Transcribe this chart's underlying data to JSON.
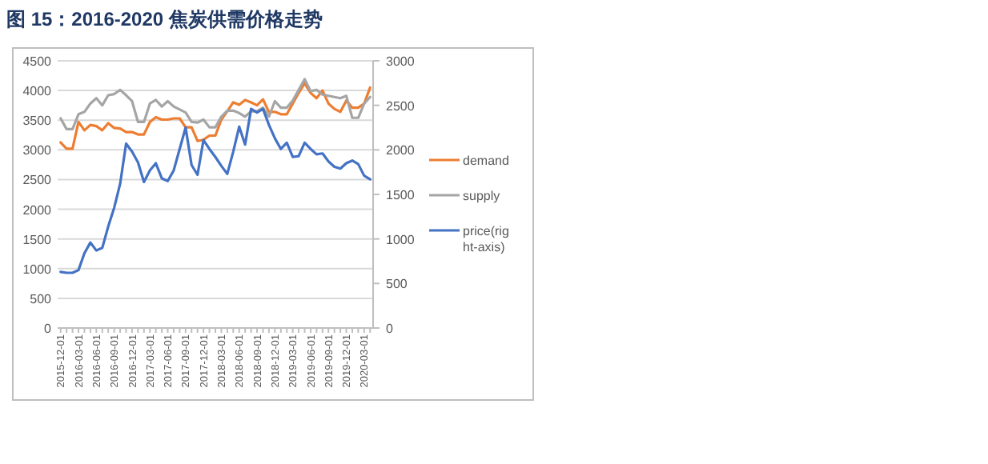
{
  "chart_data": {
    "type": "line",
    "title": "图 15：2016-2020 焦炭供需价格走势",
    "categories": [
      "2015-12-01",
      null,
      null,
      "2016-03-01",
      null,
      null,
      "2016-06-01",
      null,
      null,
      "2016-09-01",
      null,
      null,
      "2016-12-01",
      null,
      null,
      "2017-03-01",
      null,
      null,
      "2017-06-01",
      null,
      null,
      "2017-09-01",
      null,
      null,
      "2017-12-01",
      null,
      null,
      "2018-03-01",
      null,
      null,
      "2018-06-01",
      null,
      null,
      "2018-09-01",
      null,
      null,
      "2018-12-01",
      null,
      null,
      "2019-03-01",
      null,
      null,
      "2019-06-01",
      null,
      null,
      "2019-09-01",
      null,
      null,
      "2019-12-01",
      null,
      null,
      "2020-03-01",
      null
    ],
    "series": [
      {
        "name": "demand",
        "color": "#ed7d31",
        "values": [
          3125,
          3020,
          3020,
          3470,
          3330,
          3420,
          3400,
          3330,
          3450,
          3370,
          3360,
          3300,
          3300,
          3260,
          3260,
          3470,
          3550,
          3510,
          3510,
          3530,
          3530,
          3380,
          3380,
          3150,
          3170,
          3240,
          3240,
          3510,
          3650,
          3800,
          3760,
          3840,
          3800,
          3750,
          3850,
          3640,
          3640,
          3600,
          3600,
          3780,
          3960,
          4120,
          3960,
          3870,
          4000,
          3780,
          3690,
          3640,
          3830,
          3710,
          3710,
          3780,
          4050
        ]
      },
      {
        "name": "supply",
        "color": "#a5a5a5",
        "values": [
          3530,
          3350,
          3350,
          3600,
          3640,
          3780,
          3870,
          3750,
          3920,
          3940,
          4010,
          3920,
          3820,
          3470,
          3470,
          3780,
          3840,
          3730,
          3820,
          3730,
          3680,
          3630,
          3470,
          3460,
          3510,
          3380,
          3380,
          3560,
          3660,
          3660,
          3620,
          3560,
          3650,
          3650,
          3710,
          3560,
          3820,
          3710,
          3710,
          3830,
          4010,
          4190,
          3990,
          4010,
          3930,
          3910,
          3890,
          3870,
          3910,
          3540,
          3540,
          3780,
          3890
        ]
      },
      {
        "name": "price(right-axis)",
        "color": "#4472c4",
        "axis": "y2",
        "values": [
          630,
          620,
          620,
          650,
          840,
          960,
          870,
          900,
          1140,
          1350,
          1620,
          2070,
          1980,
          1860,
          1640,
          1770,
          1850,
          1680,
          1650,
          1770,
          2010,
          2250,
          1830,
          1720,
          2110,
          2010,
          1920,
          1820,
          1730,
          1980,
          2260,
          2060,
          2460,
          2420,
          2460,
          2280,
          2130,
          2010,
          2080,
          1920,
          1930,
          2080,
          2010,
          1950,
          1960,
          1870,
          1810,
          1790,
          1850,
          1880,
          1840,
          1710,
          1670
        ]
      }
    ],
    "ylim": [
      0,
      4500
    ],
    "yticks": [
      0,
      500,
      1000,
      1500,
      2000,
      2500,
      3000,
      3500,
      4000,
      4500
    ],
    "y2lim": [
      0,
      3000
    ],
    "y2ticks": [
      0,
      500,
      1000,
      1500,
      2000,
      2500,
      3000
    ],
    "grid": "y",
    "legend": "right"
  }
}
